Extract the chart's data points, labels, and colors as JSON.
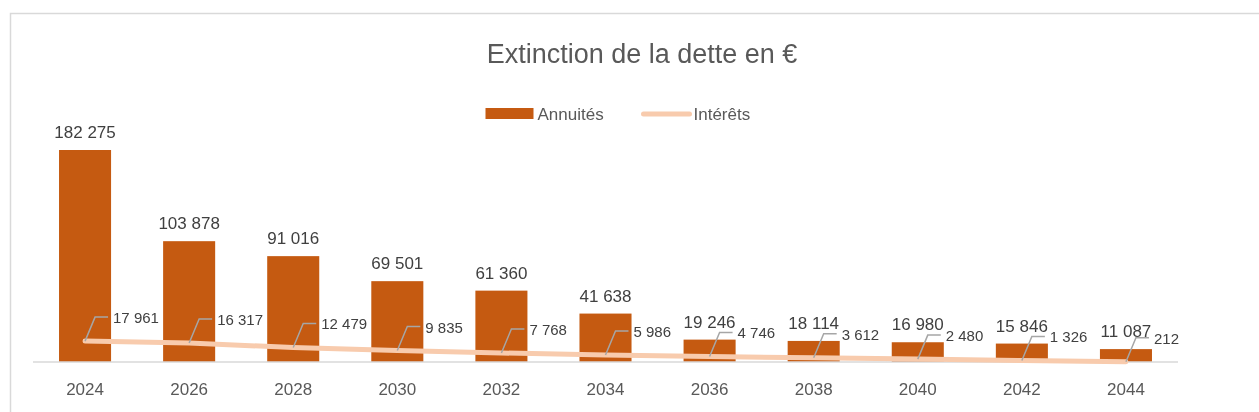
{
  "chart_data": {
    "type": "bar",
    "title": "Extinction de la dette en €",
    "categories": [
      "2024",
      "2026",
      "2028",
      "2030",
      "2032",
      "2034",
      "2036",
      "2038",
      "2040",
      "2042",
      "2044"
    ],
    "series": [
      {
        "name": "Annuités",
        "color": "#c55a11",
        "values": [
          182275,
          103878,
          91016,
          69501,
          61360,
          41638,
          19246,
          18114,
          16980,
          15846,
          11087
        ]
      },
      {
        "name": "Intérêts",
        "type": "line",
        "color": "#f8cbad",
        "values": [
          17961,
          16317,
          12479,
          9835,
          7768,
          5986,
          4746,
          3612,
          2480,
          1326,
          212
        ]
      }
    ],
    "data_labels": true,
    "legend": "top"
  }
}
